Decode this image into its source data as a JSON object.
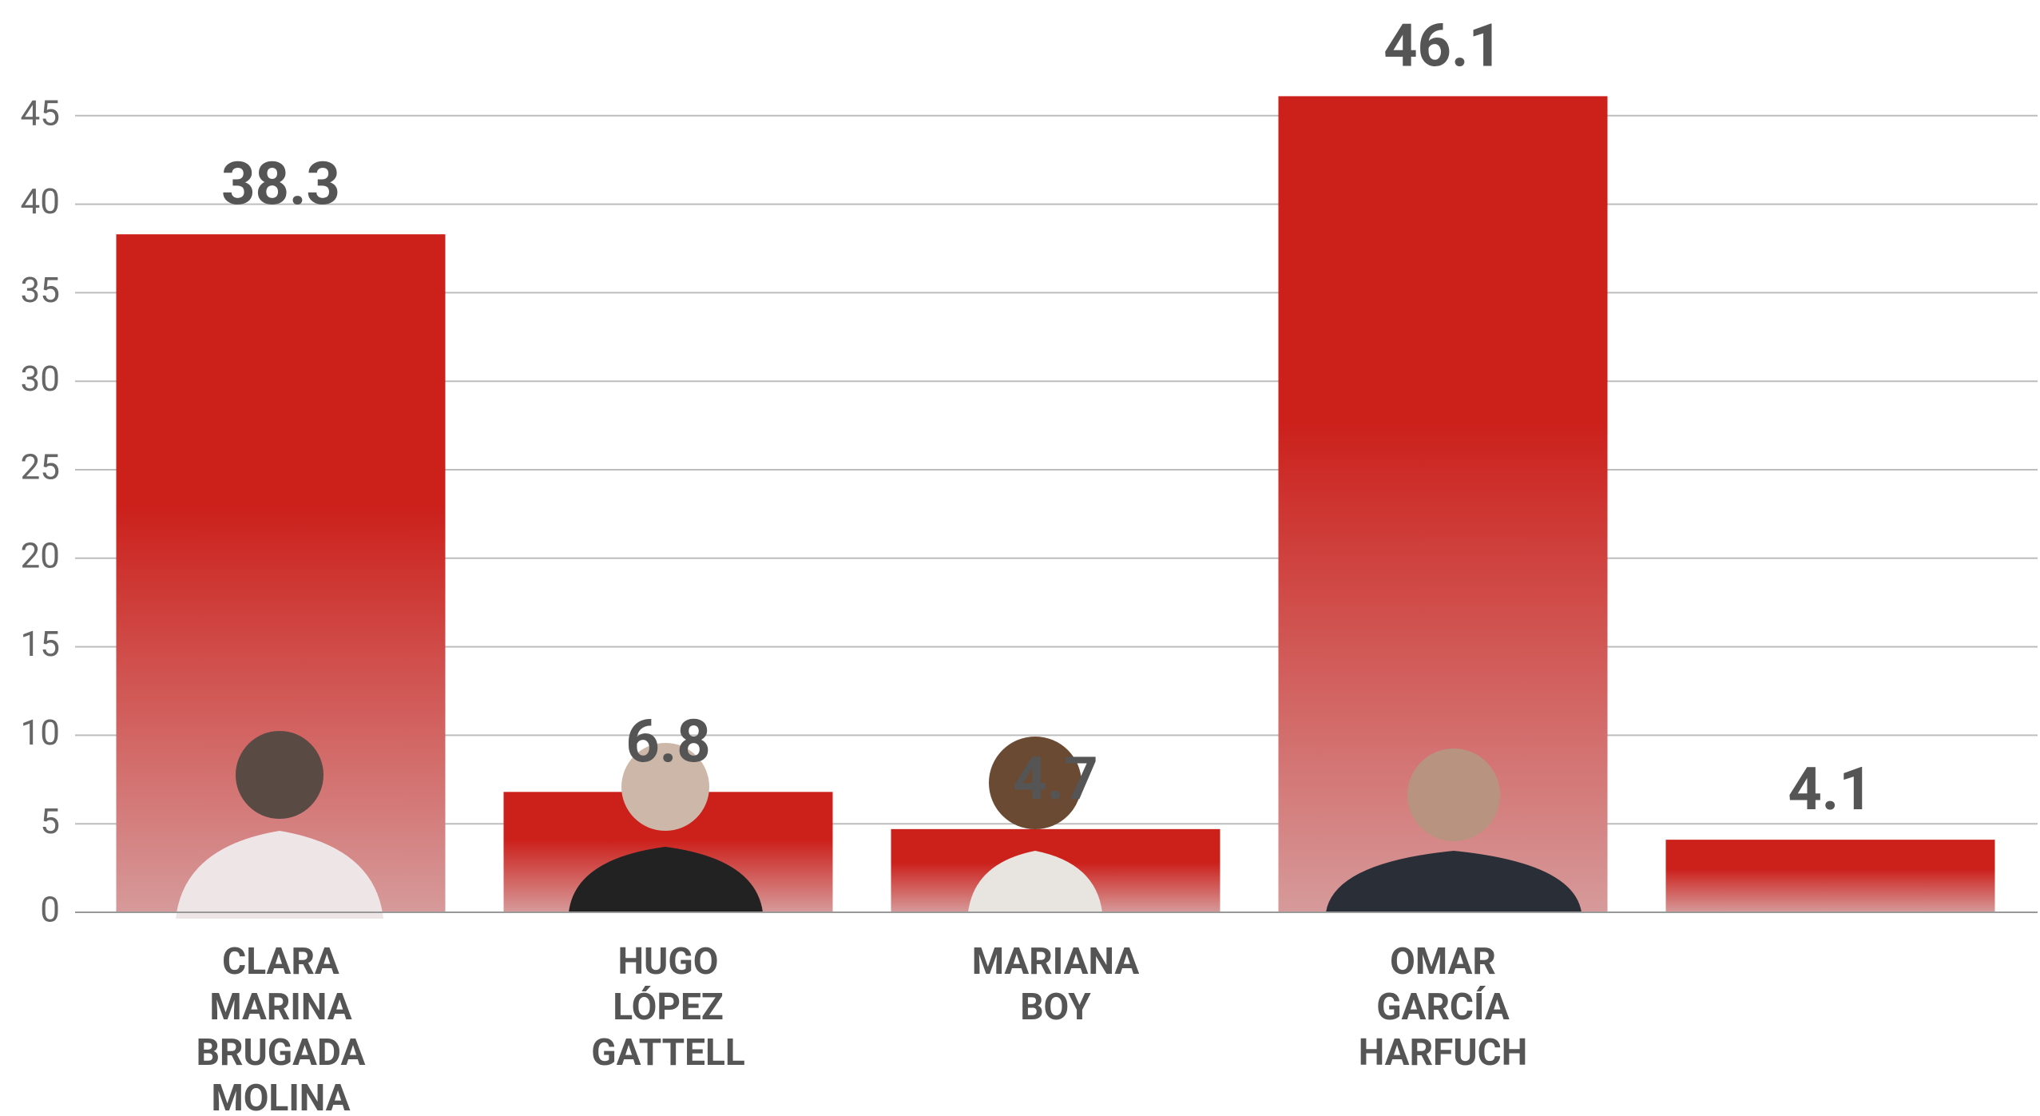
{
  "chart_data": {
    "type": "bar",
    "categories": [
      "CLARA MARINA BRUGADA MOLINA",
      "HUGO LÓPEZ GATTELL",
      "MARIANA BOY",
      "OMAR GARCÍA HARFUCH",
      null
    ],
    "values": [
      38.3,
      6.8,
      4.7,
      46.1,
      4.1
    ],
    "color": "#cc201b",
    "ylim": [
      0,
      50
    ],
    "yticks": [
      0,
      5,
      10,
      15,
      20,
      25,
      30,
      35,
      40,
      45
    ],
    "grid": true
  }
}
